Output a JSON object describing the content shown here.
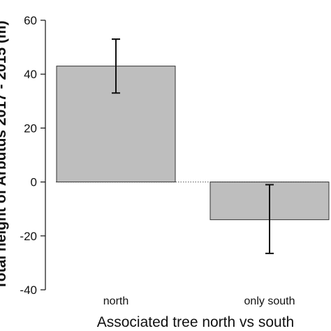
{
  "chart_data": {
    "type": "bar",
    "title": "",
    "xlabel": "Associated tree north vs south",
    "ylabel": "Total height of Arbutus 2017 - 2015 (m)",
    "categories": [
      "north",
      "only south"
    ],
    "values": [
      43,
      -14
    ],
    "error_upper": [
      53,
      -1
    ],
    "error_lower": [
      33,
      -26.5
    ],
    "ylim": [
      -40,
      60
    ],
    "yticks": [
      -40,
      -20,
      0,
      20,
      40,
      60
    ],
    "ytick_labels": [
      "-40",
      "-20",
      "0",
      "20",
      "40",
      "60"
    ],
    "grid": false,
    "zero_line": "dotted",
    "bar_color": "#bebebe",
    "bar_edge_color": "#333333"
  }
}
